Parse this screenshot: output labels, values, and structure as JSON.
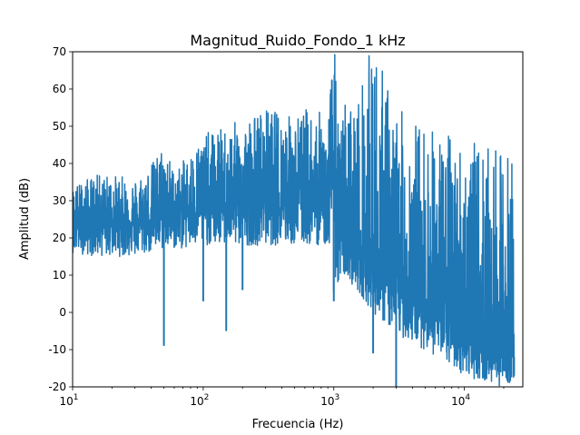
{
  "chart_data": {
    "type": "line",
    "title": "Magnitud_Ruido_Fondo_1 kHz",
    "xlabel": "Frecuencia (Hz)",
    "ylabel": "Amplitud (dB)",
    "x_scale": "log",
    "xlim": [
      10,
      28000
    ],
    "ylim": [
      -20,
      70
    ],
    "grid": false,
    "line_color": "#1f77b4",
    "x_major_ticks": [
      {
        "value": 10,
        "base": "10",
        "exp": "1"
      },
      {
        "value": 100,
        "base": "10",
        "exp": "2"
      },
      {
        "value": 1000,
        "base": "10",
        "exp": "3"
      },
      {
        "value": 10000,
        "base": "10",
        "exp": "4"
      }
    ],
    "y_ticks": [
      "-20",
      "-10",
      "0",
      "10",
      "20",
      "30",
      "40",
      "50",
      "60",
      "70"
    ],
    "series": [
      {
        "x": [
          10,
          15,
          20,
          30,
          40,
          50,
          60,
          80,
          100,
          150,
          200,
          300,
          500,
          700,
          900,
          1000,
          1100,
          1200,
          1500,
          2000,
          3000,
          5000,
          10000,
          15000,
          20000,
          24000
        ],
        "y_upper": [
          34,
          37,
          37,
          36,
          40,
          46,
          38,
          43,
          48,
          50,
          52,
          55,
          53,
          56,
          51,
          75,
          46,
          58,
          57,
          74,
          55,
          51,
          47,
          44,
          43,
          45
        ],
        "y_center": [
          24,
          25,
          25,
          24,
          25,
          26,
          27,
          28,
          28,
          29,
          29,
          30,
          30,
          30,
          29,
          40,
          24,
          18,
          15,
          11,
          6,
          2,
          -6,
          -9,
          -11,
          -12
        ],
        "y_lower": [
          16,
          15,
          15,
          15,
          16,
          17,
          17,
          17,
          18,
          18,
          18,
          18,
          18,
          18,
          18,
          5,
          4,
          10,
          6,
          0,
          -6,
          -10,
          -17,
          -19,
          -20,
          -18
        ]
      }
    ],
    "spikes": [
      {
        "x": 50,
        "y": -9
      },
      {
        "x": 100,
        "y": 3
      },
      {
        "x": 150,
        "y": -5
      },
      {
        "x": 200,
        "y": 6
      },
      {
        "x": 1000,
        "y": 3
      },
      {
        "x": 2000,
        "y": -11
      },
      {
        "x": 3000,
        "y": -20
      },
      {
        "x": 24000,
        "y": -17
      }
    ]
  }
}
